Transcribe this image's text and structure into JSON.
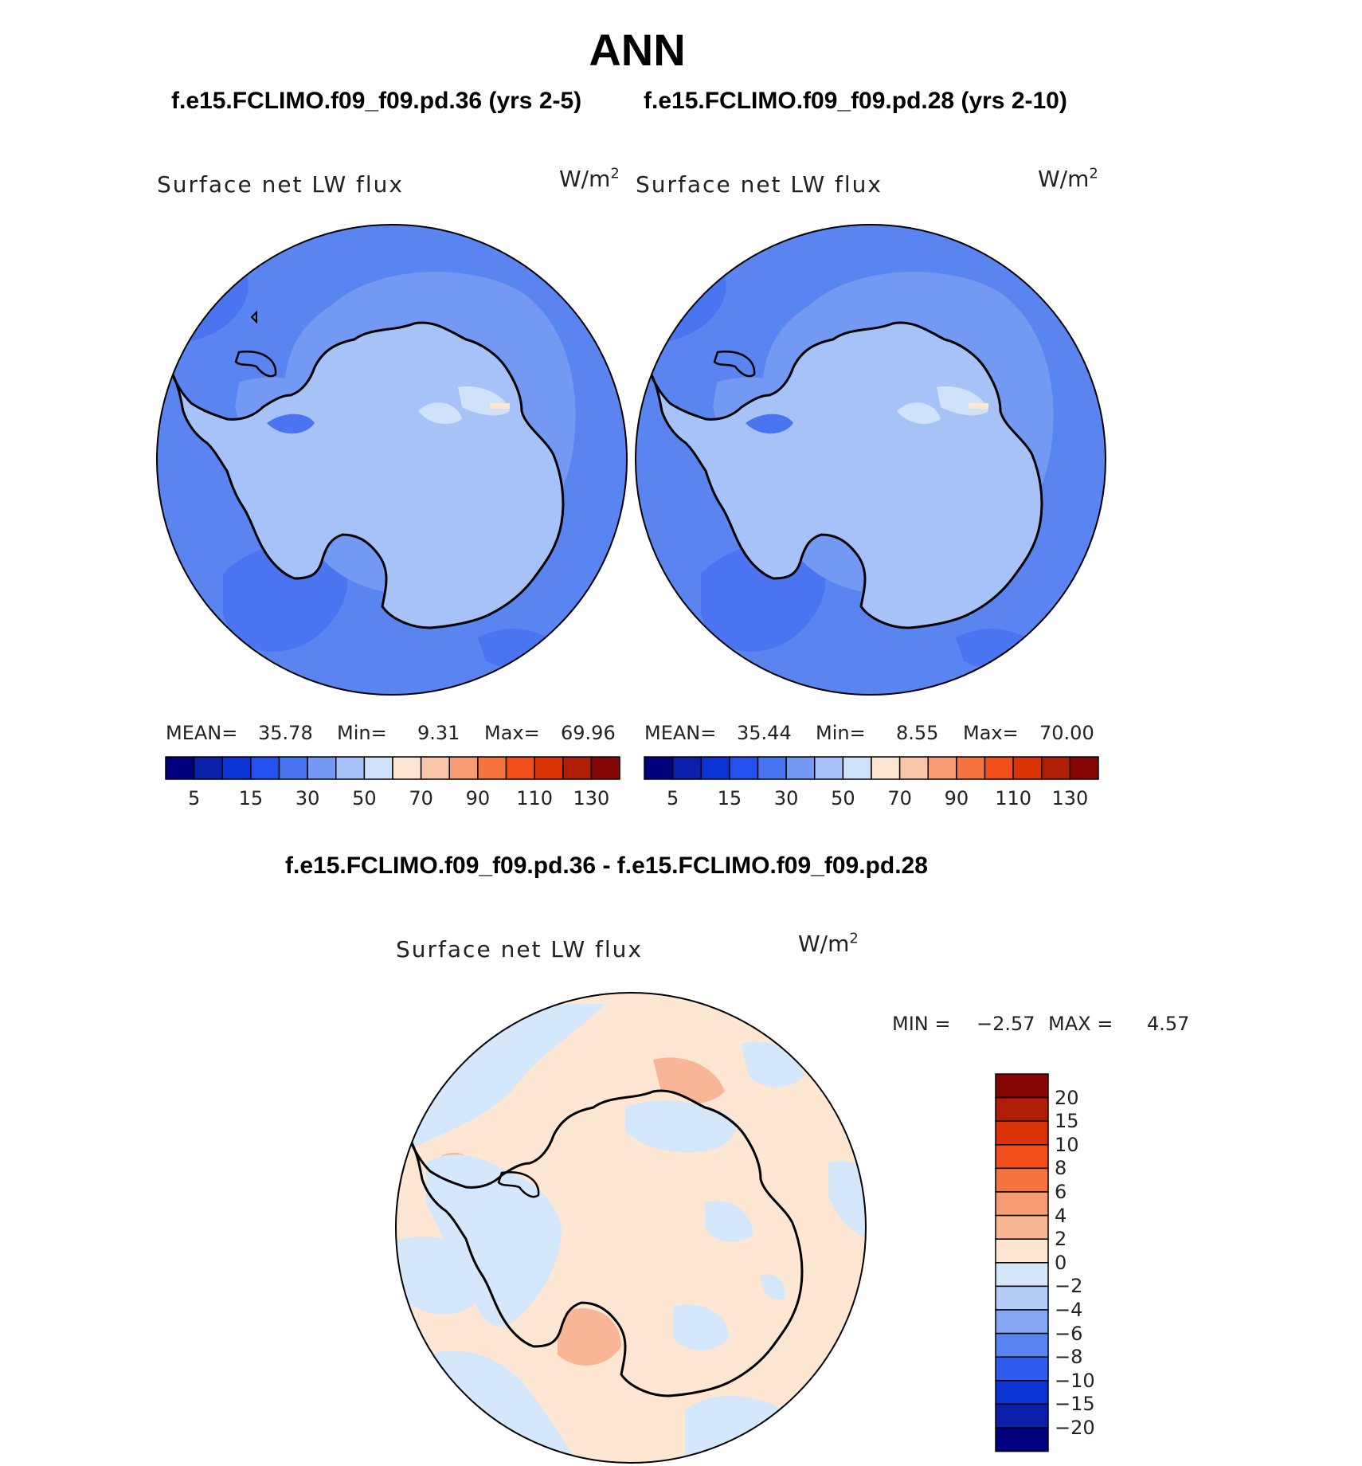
{
  "header": {
    "season": "ANN",
    "case_left": "f.e15.FCLIMO.f09_f09.pd.36 (yrs 2-5)",
    "case_right": "f.e15.FCLIMO.f09_f09.pd.28 (yrs 2-10)",
    "diff_title": "f.e15.FCLIMO.f09_f09.pd.36 - f.e15.FCLIMO.f09_f09.pd.28"
  },
  "panels": [
    {
      "variable": "Surface net LW flux",
      "units": "W/m",
      "units_exp": "2",
      "stats": {
        "mean_label": "MEAN=",
        "mean": "35.78",
        "min_label": "Min=",
        "min": "9.31",
        "max_label": "Max=",
        "max": "69.96"
      }
    },
    {
      "variable": "Surface net LW flux",
      "units": "W/m",
      "units_exp": "2",
      "stats": {
        "mean_label": "MEAN=",
        "mean": "35.44",
        "min_label": "Min=",
        "min": "8.55",
        "max_label": "Max=",
        "max": "70.00"
      }
    },
    {
      "variable": "Surface net LW flux",
      "units": "W/m",
      "units_exp": "2",
      "stats": {
        "min_label": "MIN =",
        "min": "−2.57",
        "max_label": "MAX =",
        "max": "4.57"
      }
    }
  ],
  "abs_colorbar": {
    "colors": [
      "#00007f",
      "#0a1faa",
      "#0b33d4",
      "#2350ee",
      "#4a74f0",
      "#7499f2",
      "#a6c2f7",
      "#cfe2fa",
      "#fde7d3",
      "#f9c6aa",
      "#f79b75",
      "#f5733f",
      "#f14e1c",
      "#db3305",
      "#b01d05",
      "#850404"
    ],
    "labels": [
      "5",
      "15",
      "30",
      "50",
      "70",
      "90",
      "110",
      "130"
    ]
  },
  "diff_colorbar": {
    "colors": [
      "#850404",
      "#b01d05",
      "#db3305",
      "#f14e1c",
      "#f5733f",
      "#f79b75",
      "#f9b697",
      "#fde7d3",
      "#d5e7fb",
      "#b4ccf8",
      "#86a7f3",
      "#5a84f0",
      "#2f5bee",
      "#0b33d4",
      "#0a1faa",
      "#00007f"
    ],
    "labels": [
      "20",
      "15",
      "10",
      "8",
      "6",
      "4",
      "2",
      "0",
      "−2",
      "−4",
      "−6",
      "−8",
      "−10",
      "−15",
      "−20"
    ]
  }
}
